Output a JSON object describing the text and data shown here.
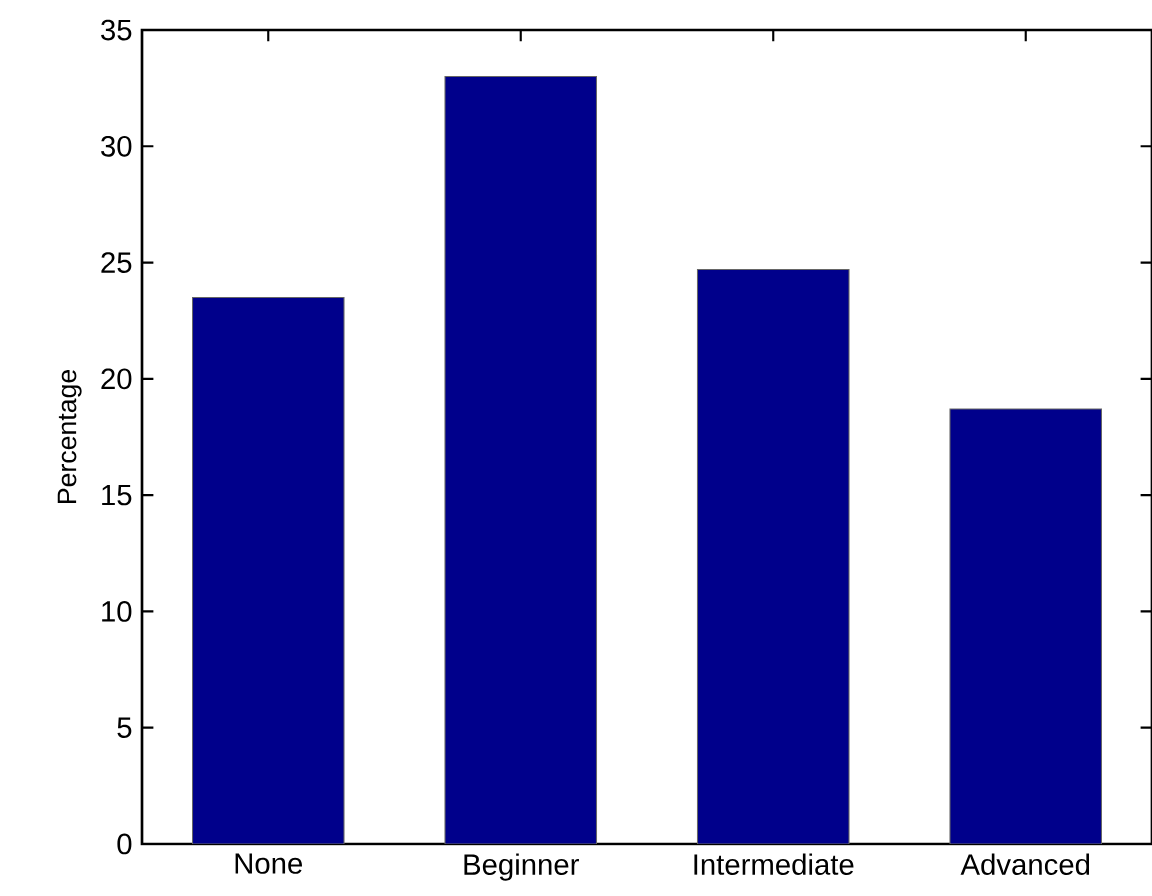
{
  "chart_data": {
    "type": "bar",
    "ylabel": "Percentage",
    "categories": [
      "None",
      "Beginner",
      "Intermediate",
      "Advanced"
    ],
    "values": [
      23.5,
      33.0,
      24.7,
      18.7
    ],
    "color": "#00008b",
    "ylim": [
      0,
      35
    ],
    "yticks": [
      0,
      5,
      10,
      15,
      20,
      25,
      30,
      35
    ],
    "grid": false
  }
}
